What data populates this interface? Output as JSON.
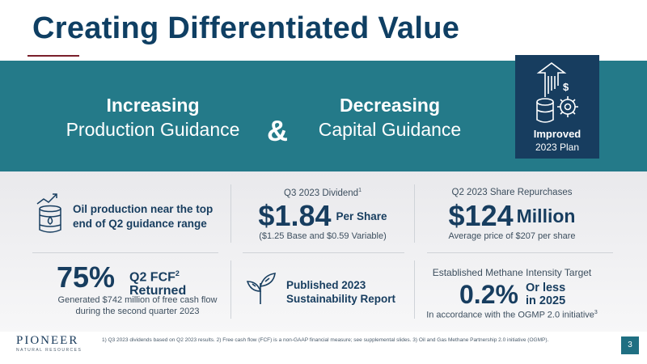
{
  "slide": {
    "title": "Creating Differentiated Value",
    "page_number": "3"
  },
  "banner": {
    "left_bold": "Increasing",
    "left_regular": "Production Guidance",
    "ampersand": "&",
    "right_bold": "Decreasing",
    "right_regular": "Capital Guidance",
    "plan_line1": "Improved",
    "plan_line2": "2023 Plan"
  },
  "metrics": {
    "oil": {
      "text": "Oil production near the top end of Q2 guidance range"
    },
    "dividend": {
      "label": "Q3 2023 Dividend",
      "footnote_mark": "1",
      "value": "$1.84",
      "unit": "Per Share",
      "sub": "($1.25 Base and $0.59 Variable)"
    },
    "repurchases": {
      "label": "Q2 2023 Share Repurchases",
      "value": "$124",
      "unit": "Million",
      "sub": "Average price of $207 per share"
    },
    "fcf": {
      "value": "75%",
      "label_line1": "Q2 FCF",
      "footnote_mark": "2",
      "label_line2": "Returned",
      "sub": "Generated $742 million of free cash flow during the second quarter 2023"
    },
    "sustainability": {
      "line1": "Published 2023",
      "line2": "Sustainability Report"
    },
    "methane": {
      "label": "Established Methane Intensity Target",
      "value": "0.2%",
      "unit_line1": "Or less",
      "unit_line2": "in 2025",
      "sub": "In accordance with the OGMP 2.0 initiative",
      "footnote_mark": "3"
    }
  },
  "footer": {
    "logo_name": "PIONEER",
    "logo_sub": "NATURAL RESOURCES",
    "footnotes": "1) Q3 2023 dividends based on Q2 2023 results.  2) Free cash flow (FCF) is a non-GAAP financial measure; see supplemental slides.  3) Oil and Gas Methane Partnership 2.0 initiative (OGMP)."
  },
  "colors": {
    "navy": "#173d5f",
    "teal": "#247a89",
    "accent_rule": "#7a1f2b"
  }
}
